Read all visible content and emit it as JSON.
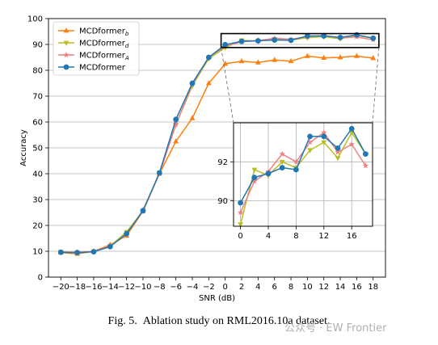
{
  "chart_data": {
    "type": "line",
    "xlabel": "SNR (dB)",
    "ylabel": "Accuracy",
    "ylim": [
      0,
      100
    ],
    "xlim": [
      -21.5,
      19.5
    ],
    "x": [
      -20,
      -18,
      -16,
      -14,
      -12,
      -10,
      -8,
      -6,
      -4,
      -2,
      0,
      2,
      4,
      6,
      8,
      10,
      12,
      14,
      16,
      18
    ],
    "x_tick_labels": [
      "−20",
      "−18",
      "−16",
      "−14",
      "−12",
      "−10",
      "−8",
      "−6",
      "−4",
      "−2",
      "0",
      "2",
      "4",
      "6",
      "8",
      "10",
      "12",
      "14",
      "16",
      "18"
    ],
    "y_ticks": [
      0,
      10,
      20,
      30,
      40,
      50,
      60,
      70,
      80,
      90,
      100
    ],
    "grid": "horizontal",
    "legend": "top-left",
    "series": [
      {
        "name": "MCDformer",
        "sub": "b",
        "color": "#ff7f0e",
        "marker": "triangle-up",
        "values": [
          9.5,
          9.0,
          10.0,
          12.5,
          16.0,
          25.5,
          40.0,
          52.5,
          61.5,
          75.0,
          82.5,
          83.5,
          83.0,
          84.0,
          83.5,
          85.5,
          84.8,
          85.0,
          85.5,
          84.7
        ]
      },
      {
        "name": "MCDformer",
        "sub": "d",
        "color": "#bcbd22",
        "marker": "triangle-down",
        "values": [
          9.8,
          9.5,
          10.0,
          12.0,
          17.5,
          25.5,
          40.5,
          59.0,
          74.0,
          84.5,
          88.8,
          91.6,
          91.3,
          92.0,
          91.7,
          92.6,
          93.0,
          92.2,
          93.5,
          92.4
        ]
      },
      {
        "name": "MCDformer",
        "sub": "A",
        "color": "#f08080",
        "marker": "star",
        "values": [
          9.7,
          9.6,
          10.0,
          12.0,
          16.5,
          26.0,
          40.0,
          59.0,
          74.5,
          85.0,
          89.4,
          91.0,
          91.5,
          92.4,
          92.0,
          93.0,
          93.5,
          92.5,
          92.9,
          91.8
        ]
      },
      {
        "name": "MCDformer",
        "sub": "",
        "color": "#1f77b4",
        "marker": "circle",
        "values": [
          9.6,
          9.5,
          9.8,
          11.8,
          16.8,
          25.7,
          40.3,
          61.0,
          75.0,
          85.0,
          89.9,
          91.2,
          91.4,
          91.7,
          91.6,
          93.3,
          93.3,
          92.7,
          93.7,
          92.4
        ]
      }
    ],
    "inset": {
      "xlim": [
        -1,
        19
      ],
      "ylim": [
        88.7,
        94.0
      ],
      "x_ticks": [
        0,
        4,
        8,
        12,
        16
      ],
      "x_tick_labels": [
        "0",
        "4",
        "8",
        "12",
        "16"
      ],
      "y_ticks": [
        90,
        92
      ],
      "y_tick_labels": [
        "90",
        "92"
      ],
      "zoom_region": {
        "x": [
          -0.5,
          18.7
        ],
        "y": [
          88.8,
          94.2
        ]
      }
    }
  },
  "caption": "Fig. 5.  Ablation study on RML2016.10a dataset.",
  "watermark": "公众号 · EW Frontier"
}
